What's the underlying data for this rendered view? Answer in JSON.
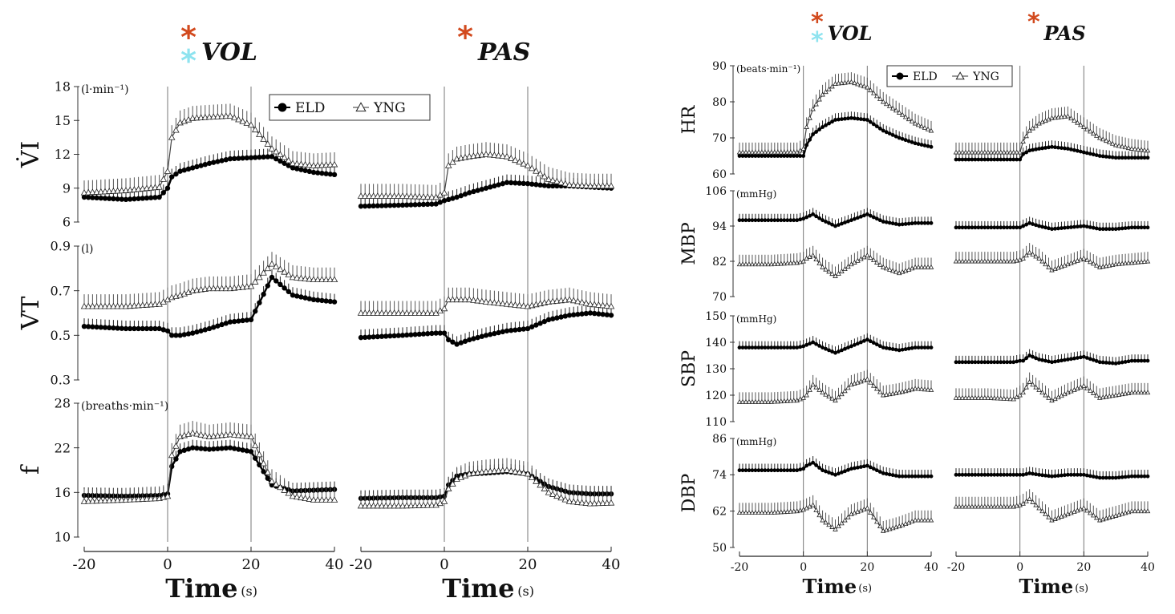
{
  "figure": {
    "left": {
      "conditions": [
        {
          "label": "VOL",
          "markers": [
            "#d24a1e",
            "#8ee3ef"
          ]
        },
        {
          "label": "PAS",
          "markers": [
            "#d24a1e"
          ]
        }
      ],
      "xlabel": "Time",
      "xunit": "(s)",
      "xticks": [
        "-20",
        "0",
        "20",
        "40"
      ],
      "legend": {
        "elder": "ELD",
        "young": "YNG"
      }
    },
    "right": {
      "conditions": [
        {
          "label": "VOL",
          "markers": [
            "#d24a1e",
            "#8ee3ef"
          ]
        },
        {
          "label": "PAS",
          "markers": [
            "#d24a1e"
          ]
        }
      ],
      "xlabel": "Time",
      "xunit": "(s)",
      "xticks": [
        "-20",
        "0",
        "20",
        "40"
      ],
      "legend": {
        "elder": "ELD",
        "young": "YNG"
      }
    }
  },
  "chart_data": [
    {
      "type": "line",
      "id": "VI",
      "ylabel": "V̇I",
      "unit": "(l·min⁻¹)",
      "yticks": [
        "18",
        "15",
        "12",
        "9",
        "6"
      ],
      "ylim": [
        6,
        18
      ],
      "xlim": [
        -20,
        40
      ],
      "x": [
        -20,
        -10,
        -2,
        0,
        1,
        3,
        6,
        10,
        15,
        20,
        25,
        30,
        35,
        40
      ],
      "series": [
        {
          "name": "ELD",
          "panel": "VOL",
          "values": [
            8.2,
            8.0,
            8.2,
            9.0,
            10.0,
            10.5,
            10.8,
            11.2,
            11.6,
            11.7,
            11.8,
            10.8,
            10.4,
            10.2
          ]
        },
        {
          "name": "YNG",
          "panel": "VOL",
          "values": [
            8.6,
            8.8,
            9.1,
            10.5,
            13.5,
            14.8,
            15.2,
            15.3,
            15.4,
            14.6,
            12.5,
            11.2,
            11.0,
            11.1
          ]
        },
        {
          "name": "ELD",
          "panel": "PAS",
          "values": [
            7.4,
            7.5,
            7.6,
            7.9,
            8.0,
            8.2,
            8.6,
            9.0,
            9.5,
            9.4,
            9.2,
            9.2,
            9.1,
            9.0
          ]
        },
        {
          "name": "YNG",
          "panel": "PAS",
          "values": [
            8.3,
            8.3,
            8.2,
            8.6,
            11.0,
            11.6,
            11.8,
            12.0,
            11.8,
            11.0,
            9.8,
            9.3,
            9.2,
            9.2
          ]
        }
      ]
    },
    {
      "type": "line",
      "id": "VT",
      "ylabel": "VT",
      "unit": "(l)",
      "yticks": [
        "0.9",
        "0.7",
        "0.5",
        "0.3"
      ],
      "ylim": [
        0.3,
        0.9
      ],
      "xlim": [
        -20,
        40
      ],
      "x": [
        -20,
        -10,
        -2,
        0,
        1,
        3,
        6,
        10,
        15,
        20,
        25,
        30,
        35,
        40
      ],
      "series": [
        {
          "name": "ELD",
          "panel": "VOL",
          "values": [
            0.54,
            0.53,
            0.53,
            0.52,
            0.5,
            0.5,
            0.51,
            0.53,
            0.56,
            0.57,
            0.76,
            0.68,
            0.66,
            0.65
          ]
        },
        {
          "name": "YNG",
          "panel": "VOL",
          "values": [
            0.63,
            0.63,
            0.64,
            0.66,
            0.67,
            0.68,
            0.7,
            0.71,
            0.71,
            0.72,
            0.82,
            0.76,
            0.75,
            0.75
          ]
        },
        {
          "name": "ELD",
          "panel": "PAS",
          "values": [
            0.49,
            0.5,
            0.51,
            0.51,
            0.48,
            0.46,
            0.48,
            0.5,
            0.52,
            0.53,
            0.57,
            0.59,
            0.6,
            0.59
          ]
        },
        {
          "name": "YNG",
          "panel": "PAS",
          "values": [
            0.6,
            0.6,
            0.6,
            0.62,
            0.66,
            0.66,
            0.66,
            0.65,
            0.64,
            0.63,
            0.65,
            0.66,
            0.64,
            0.63
          ]
        }
      ]
    },
    {
      "type": "line",
      "id": "f",
      "ylabel": "f",
      "unit": "(breaths·min⁻¹)",
      "yticks": [
        "28",
        "22",
        "16",
        "10"
      ],
      "ylim": [
        10,
        28
      ],
      "xlim": [
        -20,
        40
      ],
      "x": [
        -20,
        -10,
        -2,
        0,
        1,
        3,
        6,
        10,
        15,
        20,
        25,
        30,
        35,
        40
      ],
      "series": [
        {
          "name": "ELD",
          "panel": "VOL",
          "values": [
            15.6,
            15.5,
            15.6,
            15.8,
            19.5,
            21.5,
            22.0,
            21.8,
            22.0,
            21.5,
            17.0,
            16.2,
            16.3,
            16.4
          ]
        },
        {
          "name": "YNG",
          "panel": "VOL",
          "values": [
            14.8,
            15.0,
            15.2,
            15.5,
            21.0,
            23.5,
            24.0,
            23.5,
            23.8,
            23.5,
            17.5,
            15.5,
            15.0,
            15.0
          ]
        },
        {
          "name": "ELD",
          "panel": "PAS",
          "values": [
            15.2,
            15.3,
            15.3,
            15.5,
            17.0,
            18.2,
            18.5,
            18.6,
            18.8,
            18.5,
            16.8,
            16.0,
            15.8,
            15.8
          ]
        },
        {
          "name": "YNG",
          "panel": "PAS",
          "values": [
            14.2,
            14.2,
            14.3,
            14.8,
            16.5,
            17.8,
            18.5,
            18.8,
            19.0,
            18.5,
            16.0,
            14.8,
            14.5,
            14.6
          ]
        }
      ]
    },
    {
      "type": "line",
      "id": "HR",
      "ylabel": "HR",
      "unit": "(beats·min⁻¹)",
      "yticks": [
        "90",
        "80",
        "70",
        "60"
      ],
      "ylim": [
        60,
        90
      ],
      "xlim": [
        -20,
        40
      ],
      "x": [
        -20,
        -10,
        -2,
        0,
        1,
        3,
        6,
        10,
        15,
        20,
        25,
        30,
        35,
        40
      ],
      "series": [
        {
          "name": "ELD",
          "panel": "VOL",
          "values": [
            65,
            65,
            65,
            65,
            68,
            71,
            73,
            75,
            75.5,
            75,
            72,
            70,
            68.5,
            67.5
          ]
        },
        {
          "name": "YNG",
          "panel": "VOL",
          "values": [
            66,
            66,
            66,
            67,
            73,
            78,
            82,
            85,
            85.5,
            84,
            80,
            77,
            74,
            72
          ]
        },
        {
          "name": "ELD",
          "panel": "PAS",
          "values": [
            64,
            64,
            64,
            64,
            65.5,
            66.5,
            67,
            67.5,
            67,
            66,
            65,
            64.5,
            64.5,
            64.5
          ]
        },
        {
          "name": "YNG",
          "panel": "PAS",
          "values": [
            66,
            66,
            66,
            66,
            69,
            72,
            74,
            75.5,
            76,
            73,
            70,
            68,
            67,
            66.5
          ]
        }
      ]
    },
    {
      "type": "line",
      "id": "MBP",
      "ylabel": "MBP",
      "unit": "(mmHg)",
      "yticks": [
        "106",
        "94",
        "82",
        "70"
      ],
      "ylim": [
        70,
        106
      ],
      "xlim": [
        -20,
        40
      ],
      "x": [
        -20,
        -10,
        -2,
        0,
        1,
        3,
        6,
        10,
        15,
        20,
        25,
        30,
        35,
        40
      ],
      "series": [
        {
          "name": "ELD",
          "panel": "VOL",
          "values": [
            96,
            96,
            96,
            96.5,
            97,
            98,
            96,
            94,
            96,
            98,
            95.5,
            94.5,
            95,
            95
          ]
        },
        {
          "name": "YNG",
          "panel": "VOL",
          "values": [
            81,
            81,
            81.5,
            82,
            83,
            84,
            80,
            77,
            81,
            84,
            80,
            78,
            80,
            80
          ]
        },
        {
          "name": "ELD",
          "panel": "PAS",
          "values": [
            93.5,
            93.5,
            93.5,
            93.5,
            94,
            95,
            94,
            93,
            93.5,
            94,
            93,
            93,
            93.5,
            93.5
          ]
        },
        {
          "name": "YNG",
          "panel": "PAS",
          "values": [
            82,
            82,
            82,
            82.5,
            83,
            85,
            83,
            79,
            81,
            83,
            80,
            81,
            81.5,
            82
          ]
        }
      ]
    },
    {
      "type": "line",
      "id": "SBP",
      "ylabel": "SBP",
      "unit": "(mmHg)",
      "yticks": [
        "150",
        "140",
        "130",
        "120",
        "110"
      ],
      "ylim": [
        110,
        150
      ],
      "xlim": [
        -20,
        40
      ],
      "x": [
        -20,
        -10,
        -2,
        0,
        1,
        3,
        6,
        10,
        15,
        20,
        25,
        30,
        35,
        40
      ],
      "series": [
        {
          "name": "ELD",
          "panel": "VOL",
          "values": [
            138,
            138,
            138,
            138.5,
            139,
            140,
            138,
            136,
            138.5,
            141,
            138,
            137,
            138,
            138
          ]
        },
        {
          "name": "YNG",
          "panel": "VOL",
          "values": [
            117.5,
            117.5,
            118,
            119,
            120,
            124,
            121,
            118,
            124,
            126,
            120,
            121,
            122.5,
            122
          ]
        },
        {
          "name": "ELD",
          "panel": "PAS",
          "values": [
            132.5,
            132.5,
            132.5,
            133,
            133,
            135,
            133.5,
            132.5,
            133.5,
            134.5,
            132.5,
            132,
            133,
            133
          ]
        },
        {
          "name": "YNG",
          "panel": "PAS",
          "values": [
            119,
            119,
            118.5,
            120,
            121,
            125,
            122,
            118,
            121,
            123.5,
            119,
            120,
            121,
            121
          ]
        }
      ]
    },
    {
      "type": "line",
      "id": "DBP",
      "ylabel": "DBP",
      "unit": "(mmHg)",
      "yticks": [
        "86",
        "74",
        "62",
        "50"
      ],
      "ylim": [
        50,
        86
      ],
      "xlim": [
        -20,
        40
      ],
      "x": [
        -20,
        -10,
        -2,
        0,
        1,
        3,
        6,
        10,
        15,
        20,
        25,
        30,
        35,
        40
      ],
      "series": [
        {
          "name": "ELD",
          "panel": "VOL",
          "values": [
            75.5,
            75.5,
            75.5,
            76,
            77,
            78,
            75.5,
            74,
            76,
            77,
            74.5,
            73.5,
            73.5,
            73.5
          ]
        },
        {
          "name": "YNG",
          "panel": "VOL",
          "values": [
            61.5,
            61.5,
            62,
            62.5,
            63,
            64,
            59,
            56,
            61,
            63,
            55.5,
            57,
            59,
            59
          ]
        },
        {
          "name": "ELD",
          "panel": "PAS",
          "values": [
            74,
            74,
            74,
            74,
            74,
            74.5,
            74,
            73.5,
            74,
            74,
            73,
            73,
            73.5,
            73.5
          ]
        },
        {
          "name": "YNG",
          "panel": "PAS",
          "values": [
            63.5,
            63.5,
            63.5,
            64,
            64.5,
            66,
            63,
            59,
            61,
            63,
            59,
            60.5,
            62,
            62
          ]
        }
      ]
    }
  ]
}
